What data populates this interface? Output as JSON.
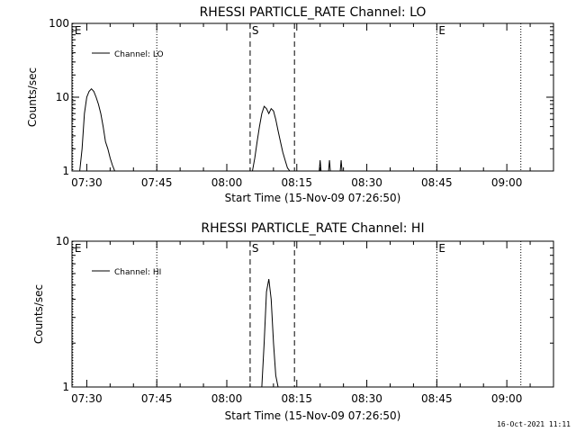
{
  "footer_date": "16-Oct-2021 11:11",
  "chart_data": [
    {
      "type": "line",
      "title": "RHESSI PARTICLE_RATE Channel: LO",
      "xlabel": "Start Time (15-Nov-09 07:26:50)",
      "ylabel": "Counts/sec",
      "yscale": "log",
      "ylim": [
        1,
        100
      ],
      "y_ticks": [
        {
          "value": 1,
          "label": "1"
        },
        {
          "value": 10,
          "label": "10"
        },
        {
          "value": 100,
          "label": "100"
        }
      ],
      "x_ticks": [
        "07:30",
        "07:45",
        "08:00",
        "08:15",
        "08:30",
        "08:45",
        "09:00"
      ],
      "legend": {
        "label": "Channel: LO",
        "position": "top-left"
      },
      "series": [
        {
          "name": "Channel: LO",
          "x": [
            "07:28:30",
            "07:29:00",
            "07:29:30",
            "07:30:00",
            "07:30:30",
            "07:31:00",
            "07:31:30",
            "07:32:00",
            "07:32:30",
            "07:33:00",
            "07:33:30",
            "07:34:00",
            "07:34:30",
            "07:35:00",
            "07:35:30",
            "07:36:00",
            "08:05:30",
            "08:06:00",
            "08:06:30",
            "08:07:00",
            "08:07:30",
            "08:08:00",
            "08:08:30",
            "08:09:00",
            "08:09:30",
            "08:10:00",
            "08:10:30",
            "08:11:00",
            "08:11:30",
            "08:12:00",
            "08:12:30",
            "08:13:00",
            "08:13:30"
          ],
          "y": [
            1,
            2,
            6,
            10,
            12,
            13,
            12,
            10,
            8,
            6,
            4,
            2.5,
            2,
            1.5,
            1.2,
            1,
            1,
            1.5,
            2.5,
            4,
            6,
            7.5,
            7,
            6,
            7,
            6.5,
            5,
            3.5,
            2.5,
            1.8,
            1.4,
            1.1,
            1
          ]
        }
      ],
      "spikes": [
        {
          "x": "08:20:00",
          "y": 1.4
        },
        {
          "x": "08:22:00",
          "y": 1.4
        },
        {
          "x": "08:24:30",
          "y": 1.4
        }
      ],
      "markers": [
        {
          "label": "E",
          "x": "07:27:00",
          "style": "dotted"
        },
        {
          "label": "",
          "x": "07:45:00",
          "style": "dotted"
        },
        {
          "label": "S",
          "x": "08:05:00",
          "style": "dashed"
        },
        {
          "label": "",
          "x": "08:14:30",
          "style": "dashed"
        },
        {
          "label": "E",
          "x": "08:45:00",
          "style": "dotted"
        },
        {
          "label": "",
          "x": "09:03:00",
          "style": "dotted"
        }
      ]
    },
    {
      "type": "line",
      "title": "RHESSI PARTICLE_RATE Channel: HI",
      "xlabel": "Start Time (15-Nov-09 07:26:50)",
      "ylabel": "Counts/sec",
      "yscale": "log",
      "ylim": [
        1,
        10
      ],
      "y_ticks": [
        {
          "value": 1,
          "label": "1"
        },
        {
          "value": 10,
          "label": "10"
        }
      ],
      "x_ticks": [
        "07:30",
        "07:45",
        "08:00",
        "08:15",
        "08:30",
        "08:45",
        "09:00"
      ],
      "legend": {
        "label": "Channel: HI",
        "position": "top-left"
      },
      "series": [
        {
          "name": "Channel: HI",
          "x": [
            "08:07:30",
            "08:08:00",
            "08:08:30",
            "08:09:00",
            "08:09:30",
            "08:10:00",
            "08:10:30",
            "08:11:00"
          ],
          "y": [
            1,
            2,
            4.5,
            5.5,
            4,
            2,
            1.2,
            1
          ]
        }
      ],
      "markers": [
        {
          "label": "E",
          "x": "07:27:00",
          "style": "dotted"
        },
        {
          "label": "",
          "x": "07:45:00",
          "style": "dotted"
        },
        {
          "label": "S",
          "x": "08:05:00",
          "style": "dashed"
        },
        {
          "label": "",
          "x": "08:14:30",
          "style": "dashed"
        },
        {
          "label": "E",
          "x": "08:45:00",
          "style": "dotted"
        },
        {
          "label": "",
          "x": "09:03:00",
          "style": "dotted"
        }
      ]
    }
  ]
}
